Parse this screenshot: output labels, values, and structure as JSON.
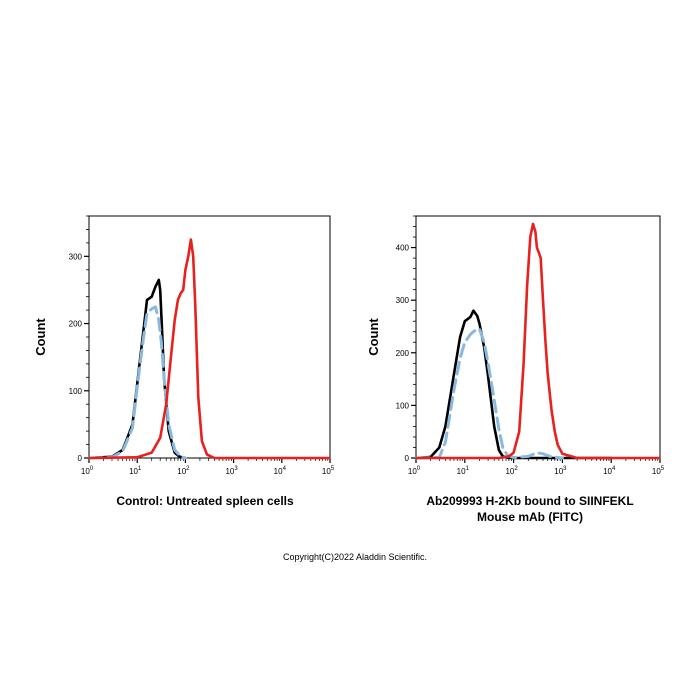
{
  "chart_data": [
    {
      "type": "line",
      "x_scale": "log",
      "xlim": [
        1,
        100000
      ],
      "ylim": [
        0,
        360
      ],
      "y_ticks": [
        0,
        100,
        200,
        300
      ],
      "x_ticks": [
        {
          "value": 1,
          "base": "10",
          "exp": "0"
        },
        {
          "value": 10,
          "base": "10",
          "exp": "1"
        },
        {
          "value": 100,
          "base": "10",
          "exp": "2"
        },
        {
          "value": 1000,
          "base": "10",
          "exp": "3"
        },
        {
          "value": 10000,
          "base": "10",
          "exp": "4"
        },
        {
          "value": 100000,
          "base": "10",
          "exp": "5"
        }
      ],
      "ylabel": "Count",
      "caption_lines": [
        "Control: Untreated spleen cells"
      ],
      "series": [
        {
          "color": "#000000",
          "style": "solid",
          "x": [
            0.7,
            3,
            5,
            8,
            10,
            13,
            16,
            20,
            24,
            28,
            30,
            33,
            36,
            45,
            60,
            75,
            100
          ],
          "y": [
            0,
            2,
            12,
            50,
            110,
            180,
            235,
            240,
            255,
            265,
            250,
            185,
            120,
            40,
            8,
            2,
            0
          ]
        },
        {
          "color": "#8ab9e0",
          "style": "dashed",
          "x": [
            0.7,
            3,
            5,
            8,
            10,
            13,
            16,
            20,
            24,
            28,
            32,
            36,
            45,
            60,
            80,
            100
          ],
          "y": [
            0,
            1,
            10,
            45,
            105,
            170,
            215,
            222,
            225,
            205,
            170,
            120,
            50,
            12,
            2,
            0
          ]
        },
        {
          "color": "#e8211f",
          "style": "solid",
          "x": [
            0.7,
            10,
            20,
            30,
            40,
            50,
            60,
            70,
            80,
            90,
            100,
            115,
            130,
            145,
            160,
            185,
            220,
            280,
            400,
            100000
          ],
          "y": [
            0,
            1,
            8,
            30,
            80,
            150,
            205,
            235,
            245,
            250,
            280,
            300,
            325,
            300,
            230,
            90,
            25,
            5,
            0,
            0
          ]
        }
      ]
    },
    {
      "type": "line",
      "x_scale": "log",
      "xlim": [
        1,
        100000
      ],
      "ylim": [
        0,
        460
      ],
      "y_ticks": [
        0,
        100,
        200,
        300,
        400
      ],
      "x_ticks": [
        {
          "value": 1,
          "base": "10",
          "exp": "0"
        },
        {
          "value": 10,
          "base": "10",
          "exp": "1"
        },
        {
          "value": 100,
          "base": "10",
          "exp": "2"
        },
        {
          "value": 1000,
          "base": "10",
          "exp": "3"
        },
        {
          "value": 10000,
          "base": "10",
          "exp": "4"
        },
        {
          "value": 100000,
          "base": "10",
          "exp": "5"
        }
      ],
      "ylabel": "Count",
      "caption_lines": [
        "Ab209993 H-2Kb bound to SIINFEKL",
        "Mouse mAb (FITC)"
      ],
      "series": [
        {
          "color": "#000000",
          "style": "solid",
          "x": [
            0.7,
            2,
            3,
            4,
            6,
            8,
            10,
            13,
            15,
            18,
            20,
            25,
            30,
            40,
            50,
            60,
            80,
            100,
            10000
          ],
          "y": [
            0,
            2,
            20,
            60,
            160,
            230,
            260,
            268,
            280,
            270,
            255,
            210,
            155,
            60,
            15,
            3,
            0,
            0,
            0
          ]
        },
        {
          "color": "#8ab9e0",
          "style": "dashed",
          "x": [
            0.7,
            3,
            4,
            6,
            8,
            10,
            13,
            15,
            18,
            20,
            25,
            30,
            40,
            50,
            60,
            75,
            100,
            200,
            300,
            400,
            600,
            1000
          ],
          "y": [
            0,
            1,
            30,
            130,
            190,
            220,
            235,
            240,
            245,
            245,
            220,
            180,
            110,
            55,
            20,
            5,
            1,
            3,
            10,
            8,
            2,
            0
          ]
        },
        {
          "color": "#e8211f",
          "style": "solid",
          "x": [
            0.7,
            50,
            80,
            100,
            130,
            160,
            190,
            220,
            250,
            280,
            300,
            330,
            360,
            400,
            450,
            500,
            600,
            700,
            800,
            1000,
            2000,
            100000
          ],
          "y": [
            0,
            0,
            3,
            10,
            50,
            180,
            330,
            420,
            445,
            430,
            400,
            390,
            380,
            300,
            220,
            160,
            90,
            50,
            25,
            8,
            0,
            0
          ]
        }
      ]
    }
  ],
  "copyright": "Copyright(C)2022 Aladdin Scientific."
}
